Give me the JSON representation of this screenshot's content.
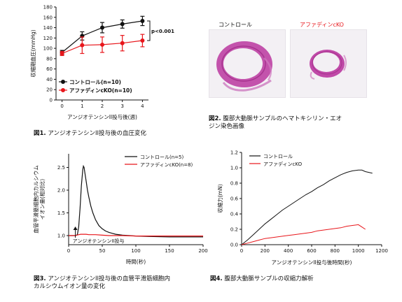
{
  "chart_data": [
    {
      "type": "line",
      "id": "fig1",
      "title": "",
      "xlabel": "アンジオテンシンII投与後(週)",
      "ylabel": "収縮期血圧(mmHg)",
      "x": [
        0,
        1,
        2,
        3,
        4
      ],
      "xlim": [
        -0.3,
        4.3
      ],
      "ylim": [
        0,
        180
      ],
      "xticks": [
        0,
        1,
        2,
        3,
        4
      ],
      "yticks": [
        0,
        20,
        40,
        60,
        80,
        100,
        120,
        140,
        160,
        180
      ],
      "series": [
        {
          "name": "コントロール(n=10)",
          "color": "#111111",
          "marker": "circle",
          "values": [
            92,
            124,
            140,
            147,
            153
          ],
          "err": [
            4,
            8,
            10,
            8,
            9
          ]
        },
        {
          "name": "アファディンcKO(n=10)",
          "color": "#e8161b",
          "marker": "circle",
          "values": [
            90,
            106,
            107,
            110,
            115
          ],
          "err": [
            4,
            16,
            15,
            15,
            12
          ]
        }
      ],
      "annotation": "p<0.001",
      "legend": "bottom-left"
    },
    {
      "type": "line",
      "id": "fig3",
      "title": "",
      "xlabel": "時間(秒)",
      "ylabel": "血管平滑筋細胞内カルシウム\nイオン量(相対比)",
      "xlim": [
        0,
        200
      ],
      "ylim": [
        0.8,
        2.8
      ],
      "xticks": [
        0,
        50,
        100,
        150,
        200
      ],
      "yticks": [
        1.0,
        1.5,
        2.0,
        2.5
      ],
      "series": [
        {
          "name": "コントロール(n=5)",
          "color": "#111111",
          "x": [
            0,
            5,
            10,
            13,
            15,
            17,
            19,
            21,
            22,
            23,
            24,
            26,
            28,
            30,
            33,
            36,
            40,
            45,
            50,
            55,
            60,
            65,
            70,
            80,
            90,
            100,
            120,
            150,
            175,
            200
          ],
          "y": [
            1.0,
            1.0,
            1.0,
            1.02,
            1.2,
            1.6,
            2.1,
            2.45,
            2.53,
            2.5,
            2.4,
            2.2,
            2.0,
            1.85,
            1.65,
            1.5,
            1.35,
            1.22,
            1.15,
            1.1,
            1.07,
            1.05,
            1.03,
            1.01,
            1.0,
            0.99,
            0.98,
            0.97,
            0.97,
            0.97
          ]
        },
        {
          "name": "アファディンcKO(n=8)",
          "color": "#e8161b",
          "x": [
            0,
            10,
            12,
            15,
            18,
            22,
            26,
            30,
            40,
            50,
            60,
            80,
            100,
            120,
            150,
            175,
            200
          ],
          "y": [
            1.0,
            1.0,
            1.01,
            1.02,
            1.03,
            1.03,
            1.03,
            1.02,
            1.02,
            1.01,
            1.0,
            1.0,
            0.99,
            0.99,
            0.99,
            0.99,
            0.99
          ]
        }
      ],
      "annotation": "アンジオテンシンII投与",
      "legend": "top-right"
    },
    {
      "type": "line",
      "id": "fig4",
      "title": "",
      "xlabel": "アンジオテンシンII投与後時間(秒)",
      "ylabel": "収縮力(mN)",
      "xlim": [
        0,
        1200
      ],
      "ylim": [
        0,
        1.2
      ],
      "xticks": [
        0,
        200,
        400,
        600,
        800,
        1000,
        1200
      ],
      "yticks": [
        0.0,
        0.2,
        0.4,
        0.6,
        0.8,
        1.0,
        1.2
      ],
      "series": [
        {
          "name": "コントロール",
          "color": "#111111",
          "x": [
            0,
            50,
            100,
            150,
            200,
            250,
            300,
            350,
            400,
            450,
            500,
            550,
            600,
            650,
            700,
            750,
            800,
            850,
            900,
            950,
            1000,
            1030,
            1060,
            1090,
            1120
          ],
          "y": [
            0.0,
            0.06,
            0.13,
            0.2,
            0.27,
            0.33,
            0.39,
            0.45,
            0.5,
            0.55,
            0.6,
            0.65,
            0.69,
            0.74,
            0.78,
            0.83,
            0.87,
            0.91,
            0.94,
            0.96,
            0.97,
            0.97,
            0.95,
            0.94,
            0.93
          ]
        },
        {
          "name": "アファディンcKO",
          "color": "#e8161b",
          "x": [
            0,
            50,
            100,
            150,
            200,
            250,
            300,
            350,
            400,
            450,
            500,
            550,
            600,
            650,
            700,
            750,
            800,
            850,
            900,
            950,
            1000,
            1030,
            1060
          ],
          "y": [
            0.0,
            0.02,
            0.04,
            0.06,
            0.08,
            0.09,
            0.1,
            0.11,
            0.12,
            0.13,
            0.14,
            0.15,
            0.16,
            0.18,
            0.19,
            0.2,
            0.21,
            0.22,
            0.24,
            0.25,
            0.26,
            0.23,
            0.2
          ]
        }
      ],
      "legend": "top-left"
    }
  ],
  "fig2": {
    "photo_left_title": "コントロール",
    "photo_right_title": "アファディンcKO",
    "tissue_color": "#c04aa8",
    "background_color": "#f3f0f4"
  },
  "captions": {
    "fig1_num": "図1.",
    "fig1_text": " アンジオテンシンII投与後の血圧変化",
    "fig2_num": "図2.",
    "fig2_text": " 腹部大動脈サンプルのヘマトキシリン・エオ\nジン染色画像",
    "fig3_num": "図3.",
    "fig3_text": " アンジオテンシンII投与後の血管平滑筋細胞内\nカルシウムイオン量の変化",
    "fig4_num": "図4.",
    "fig4_text": " 腹部大動脈サンプルの収縮力解析"
  }
}
